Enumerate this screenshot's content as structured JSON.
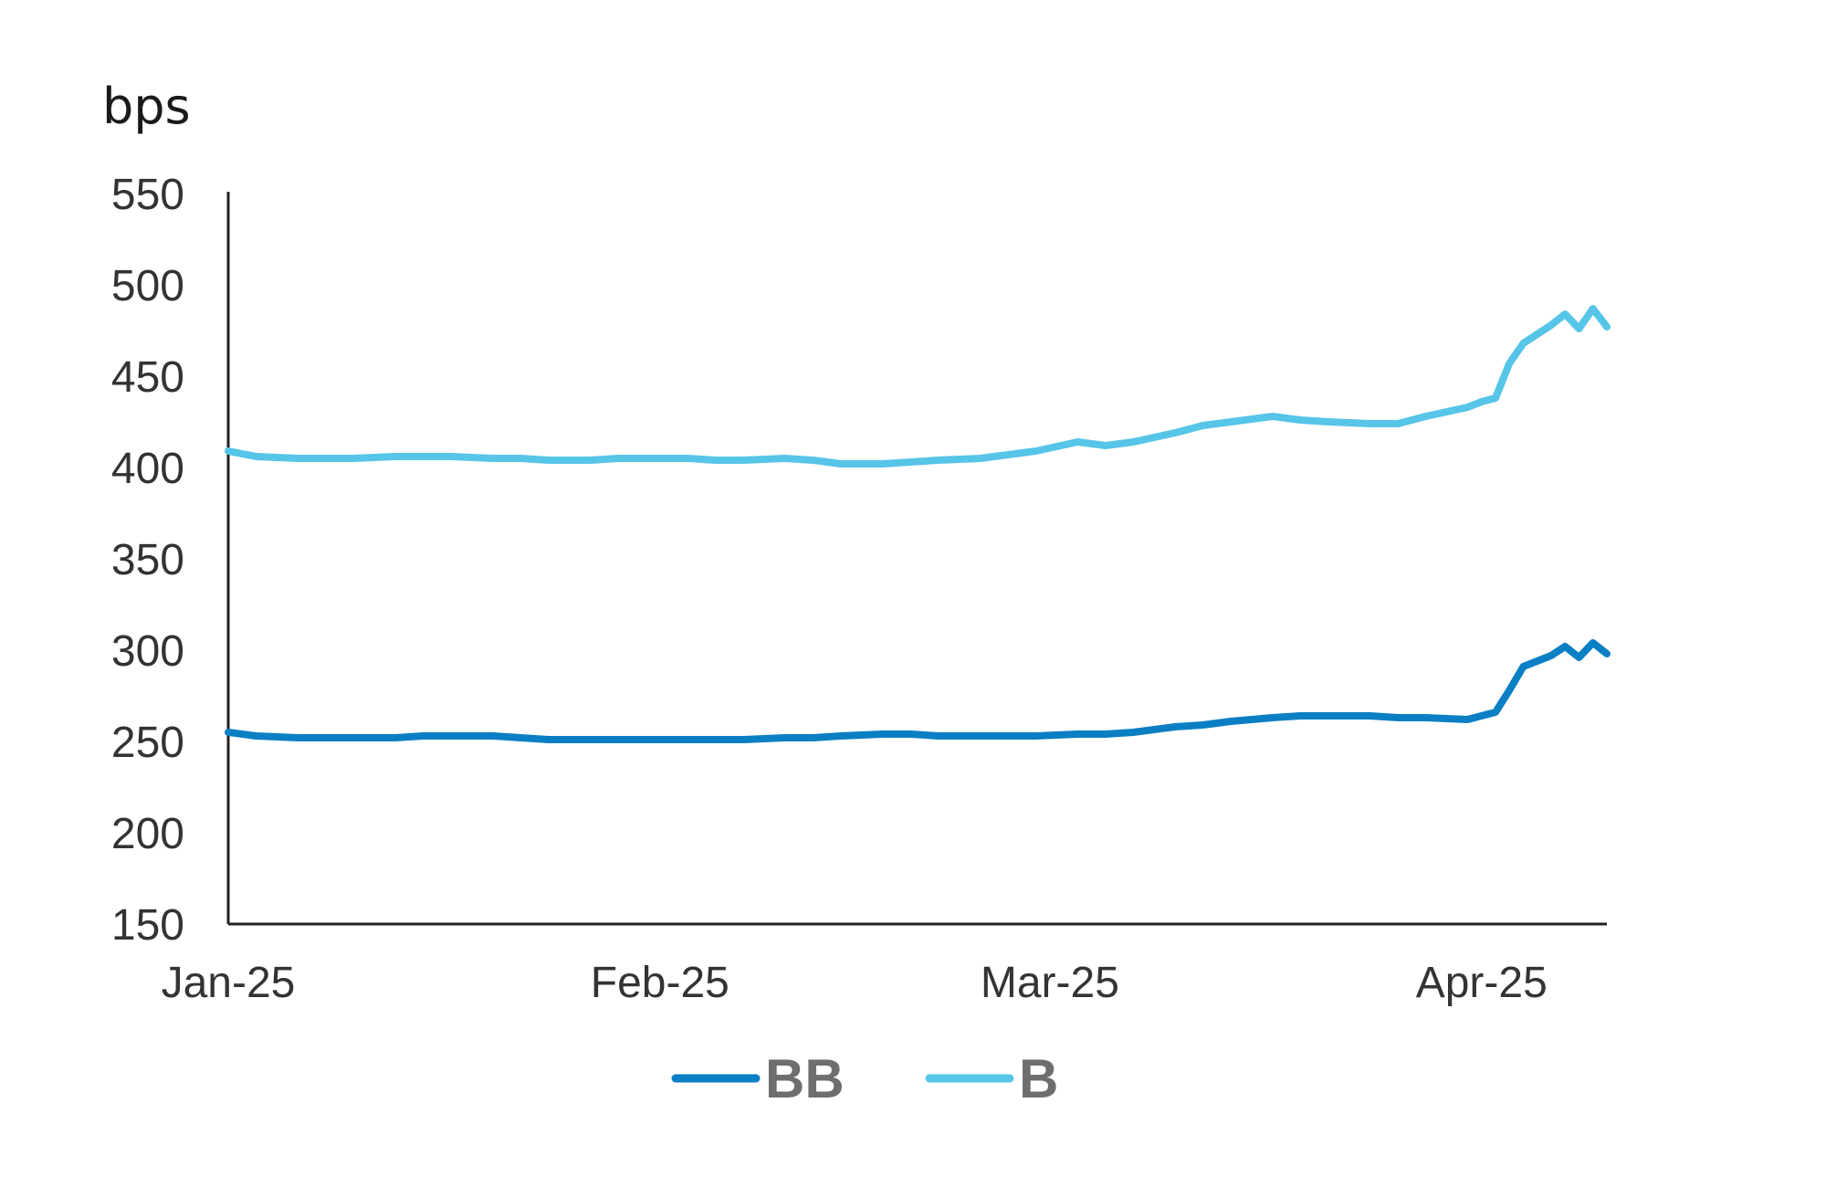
{
  "chart_data": {
    "type": "line",
    "y_unit_label": "bps",
    "ylim": [
      150,
      550
    ],
    "y_ticks": [
      550,
      500,
      450,
      400,
      350,
      300,
      250,
      200,
      150
    ],
    "x_ticks": [
      "Jan-25",
      "Feb-25",
      "Mar-25",
      "Apr-25"
    ],
    "x_range": [
      "2025-01-01",
      "2025-04-10"
    ],
    "grid": false,
    "legend_position": "bottom",
    "series": [
      {
        "name": "BB",
        "color": "#0a7fc4",
        "points": [
          [
            "2025-01-01",
            255
          ],
          [
            "2025-01-03",
            253
          ],
          [
            "2025-01-06",
            252
          ],
          [
            "2025-01-08",
            252
          ],
          [
            "2025-01-10",
            252
          ],
          [
            "2025-01-13",
            252
          ],
          [
            "2025-01-15",
            253
          ],
          [
            "2025-01-17",
            253
          ],
          [
            "2025-01-20",
            253
          ],
          [
            "2025-01-22",
            252
          ],
          [
            "2025-01-24",
            251
          ],
          [
            "2025-01-27",
            251
          ],
          [
            "2025-01-29",
            251
          ],
          [
            "2025-01-31",
            251
          ],
          [
            "2025-02-03",
            251
          ],
          [
            "2025-02-05",
            251
          ],
          [
            "2025-02-07",
            251
          ],
          [
            "2025-02-10",
            252
          ],
          [
            "2025-02-12",
            252
          ],
          [
            "2025-02-14",
            253
          ],
          [
            "2025-02-17",
            254
          ],
          [
            "2025-02-19",
            254
          ],
          [
            "2025-02-21",
            253
          ],
          [
            "2025-02-24",
            253
          ],
          [
            "2025-02-26",
            253
          ],
          [
            "2025-02-28",
            253
          ],
          [
            "2025-03-03",
            254
          ],
          [
            "2025-03-05",
            254
          ],
          [
            "2025-03-07",
            255
          ],
          [
            "2025-03-10",
            258
          ],
          [
            "2025-03-12",
            259
          ],
          [
            "2025-03-14",
            261
          ],
          [
            "2025-03-17",
            263
          ],
          [
            "2025-03-19",
            264
          ],
          [
            "2025-03-21",
            264
          ],
          [
            "2025-03-24",
            264
          ],
          [
            "2025-03-26",
            263
          ],
          [
            "2025-03-28",
            263
          ],
          [
            "2025-03-31",
            262
          ],
          [
            "2025-04-01",
            264
          ],
          [
            "2025-04-02",
            266
          ],
          [
            "2025-04-03",
            278
          ],
          [
            "2025-04-04",
            291
          ],
          [
            "2025-04-06",
            297
          ],
          [
            "2025-04-07",
            302
          ],
          [
            "2025-04-08",
            296
          ],
          [
            "2025-04-09",
            304
          ],
          [
            "2025-04-10",
            298
          ]
        ]
      },
      {
        "name": "B",
        "color": "#56c5e8",
        "points": [
          [
            "2025-01-01",
            409
          ],
          [
            "2025-01-03",
            406
          ],
          [
            "2025-01-06",
            405
          ],
          [
            "2025-01-08",
            405
          ],
          [
            "2025-01-10",
            405
          ],
          [
            "2025-01-13",
            406
          ],
          [
            "2025-01-15",
            406
          ],
          [
            "2025-01-17",
            406
          ],
          [
            "2025-01-20",
            405
          ],
          [
            "2025-01-22",
            405
          ],
          [
            "2025-01-24",
            404
          ],
          [
            "2025-01-27",
            404
          ],
          [
            "2025-01-29",
            405
          ],
          [
            "2025-01-31",
            405
          ],
          [
            "2025-02-03",
            405
          ],
          [
            "2025-02-05",
            404
          ],
          [
            "2025-02-07",
            404
          ],
          [
            "2025-02-10",
            405
          ],
          [
            "2025-02-12",
            404
          ],
          [
            "2025-02-14",
            402
          ],
          [
            "2025-02-17",
            402
          ],
          [
            "2025-02-19",
            403
          ],
          [
            "2025-02-21",
            404
          ],
          [
            "2025-02-24",
            405
          ],
          [
            "2025-02-26",
            407
          ],
          [
            "2025-02-28",
            409
          ],
          [
            "2025-03-03",
            414
          ],
          [
            "2025-03-05",
            412
          ],
          [
            "2025-03-07",
            414
          ],
          [
            "2025-03-10",
            419
          ],
          [
            "2025-03-12",
            423
          ],
          [
            "2025-03-14",
            425
          ],
          [
            "2025-03-17",
            428
          ],
          [
            "2025-03-19",
            426
          ],
          [
            "2025-03-21",
            425
          ],
          [
            "2025-03-24",
            424
          ],
          [
            "2025-03-26",
            424
          ],
          [
            "2025-03-28",
            428
          ],
          [
            "2025-03-31",
            433
          ],
          [
            "2025-04-01",
            436
          ],
          [
            "2025-04-02",
            438
          ],
          [
            "2025-04-03",
            457
          ],
          [
            "2025-04-04",
            468
          ],
          [
            "2025-04-06",
            478
          ],
          [
            "2025-04-07",
            484
          ],
          [
            "2025-04-08",
            476
          ],
          [
            "2025-04-09",
            487
          ],
          [
            "2025-04-10",
            477
          ]
        ]
      }
    ]
  }
}
